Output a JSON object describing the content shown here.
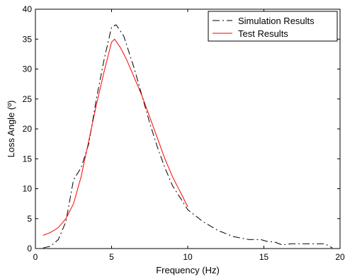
{
  "chart_data": {
    "type": "line",
    "title": "",
    "xlabel": "Frequency (Hz)",
    "ylabel": "Loss Angle (º)",
    "xlim": [
      0,
      20
    ],
    "ylim": [
      0,
      40
    ],
    "xticks": [
      0,
      5,
      10,
      15,
      20
    ],
    "yticks": [
      0,
      5,
      10,
      15,
      20,
      25,
      30,
      35,
      40
    ],
    "grid": false,
    "legend_position": "top-right",
    "series": [
      {
        "name": "Simulation Results",
        "color": "#000000",
        "style": "dash-dot",
        "points": [
          [
            0.5,
            0.1
          ],
          [
            1.0,
            0.4
          ],
          [
            1.5,
            1.5
          ],
          [
            2.0,
            4.5
          ],
          [
            2.5,
            11.5
          ],
          [
            3.0,
            13.5
          ],
          [
            3.5,
            17.5
          ],
          [
            4.0,
            25.0
          ],
          [
            4.5,
            31.5
          ],
          [
            5.0,
            37.0
          ],
          [
            5.3,
            37.4
          ],
          [
            5.8,
            35.5
          ],
          [
            6.5,
            30.0
          ],
          [
            7.0,
            25.5
          ],
          [
            7.5,
            21.0
          ],
          [
            8.0,
            17.0
          ],
          [
            8.5,
            13.5
          ],
          [
            9.0,
            10.5
          ],
          [
            9.5,
            8.5
          ],
          [
            10.0,
            6.5
          ],
          [
            10.5,
            5.5
          ],
          [
            11.0,
            4.5
          ],
          [
            12.0,
            3.0
          ],
          [
            13.0,
            2.0
          ],
          [
            14.0,
            1.5
          ],
          [
            14.8,
            1.5
          ],
          [
            15.2,
            1.2
          ],
          [
            15.7,
            1.1
          ],
          [
            16.2,
            0.6
          ],
          [
            16.8,
            0.8
          ],
          [
            19.0,
            0.8
          ],
          [
            19.5,
            0.1
          ]
        ]
      },
      {
        "name": "Test Results",
        "color": "#ff0000",
        "style": "solid",
        "points": [
          [
            0.5,
            2.2
          ],
          [
            1.0,
            2.7
          ],
          [
            1.5,
            3.5
          ],
          [
            2.0,
            5.0
          ],
          [
            2.5,
            7.5
          ],
          [
            3.0,
            12.0
          ],
          [
            3.5,
            18.0
          ],
          [
            4.0,
            24.0
          ],
          [
            4.5,
            29.5
          ],
          [
            5.0,
            34.5
          ],
          [
            5.2,
            35.0
          ],
          [
            5.6,
            33.5
          ],
          [
            6.0,
            31.5
          ],
          [
            6.5,
            28.5
          ],
          [
            7.0,
            25.5
          ],
          [
            7.5,
            22.0
          ],
          [
            8.0,
            18.5
          ],
          [
            8.5,
            15.0
          ],
          [
            9.0,
            12.0
          ],
          [
            9.5,
            9.5
          ],
          [
            10.0,
            7.0
          ]
        ]
      }
    ]
  }
}
